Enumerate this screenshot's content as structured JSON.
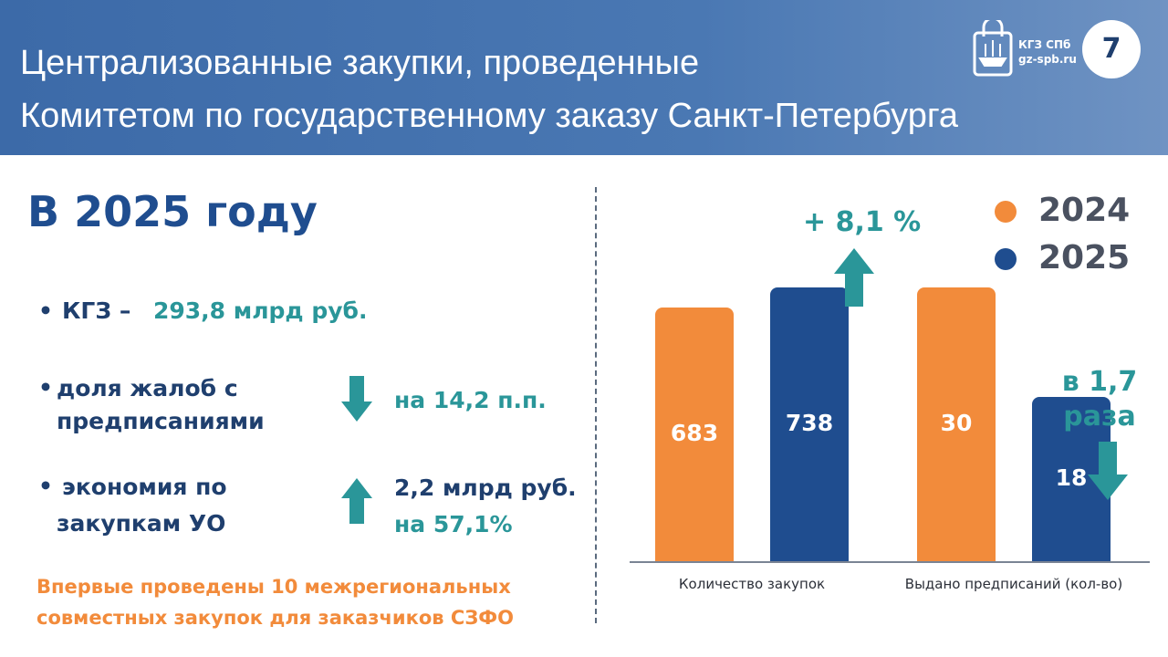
{
  "header": {
    "title_lines": [
      "Централизованные закупки, проведенные",
      "Комитетом по государственному заказу Санкт-Петербурга"
    ],
    "logo_name": "КГЗ СПб",
    "logo_site": "gz-spb.ru",
    "slide_number": "7"
  },
  "left": {
    "heading": "В 2025 году",
    "items": [
      {
        "label": "КГЗ –",
        "value": "293,8 млрд руб."
      },
      {
        "label": "доля жалоб с предписаниями",
        "value": "на 14,2 п.п."
      },
      {
        "label": "экономия по закупкам УО",
        "value_lines": [
          "2,2 млрд руб.",
          "на 57,1%"
        ]
      }
    ],
    "footnote": "Впервые проведены 10 межрегиональных совместных закупок для заказчиков СЗФО"
  },
  "chart_data": {
    "type": "bar",
    "categories": [
      "Количество закупок",
      "Выдано предписаний (кол-во)"
    ],
    "series": [
      {
        "name": "2024",
        "color": "#f28b3b",
        "values": [
          683,
          30
        ]
      },
      {
        "name": "2025",
        "color": "#1f4d8f",
        "values": [
          738,
          18
        ]
      }
    ],
    "annotations": [
      "+ 8,1 %",
      "в 1,7 раза"
    ],
    "legend": "top-right"
  }
}
